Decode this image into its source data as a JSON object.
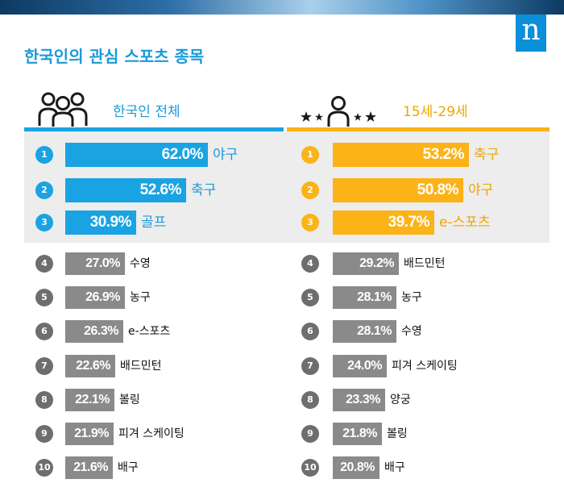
{
  "brand": {
    "logo_text": "n"
  },
  "page": {
    "title": "한국인의 관심 스포츠 종목"
  },
  "colors": {
    "all": "#1aa3e3",
    "youth": "#fbb318",
    "rest": "#8a8a8a",
    "badge_rest": "#6e6e6e",
    "panel": "#ededed"
  },
  "icons": {
    "all": "people-group-icon",
    "youth": "person-with-stars-icon"
  },
  "chart_data": [
    {
      "type": "bar",
      "title": "한국인 전체",
      "unit": "%",
      "ranks": [
        "1",
        "2",
        "3",
        "4",
        "5",
        "6",
        "7",
        "8",
        "9",
        "10"
      ],
      "categories": [
        "야구",
        "축구",
        "골프",
        "수영",
        "농구",
        "e-스포츠",
        "배드민턴",
        "볼링",
        "피겨 스케이팅",
        "배구"
      ],
      "values": [
        62.0,
        52.6,
        30.9,
        27.0,
        26.9,
        26.3,
        22.6,
        22.1,
        21.9,
        21.6
      ],
      "labels": [
        "62.0%",
        "52.6%",
        "30.9%",
        "27.0%",
        "26.9%",
        "26.3%",
        "22.6%",
        "22.1%",
        "21.9%",
        "21.6%"
      ],
      "highlight_top": 3
    },
    {
      "type": "bar",
      "title": "15세-29세",
      "unit": "%",
      "ranks": [
        "1",
        "2",
        "3",
        "4",
        "5",
        "6",
        "7",
        "8",
        "9",
        "10"
      ],
      "categories": [
        "축구",
        "야구",
        "e-스포츠",
        "배드민턴",
        "농구",
        "수영",
        "피겨 스케이팅",
        "양궁",
        "볼링",
        "배구"
      ],
      "values": [
        53.2,
        50.8,
        39.7,
        29.2,
        28.1,
        28.1,
        24.0,
        23.3,
        21.8,
        20.8
      ],
      "labels": [
        "53.2%",
        "50.8%",
        "39.7%",
        "29.2%",
        "28.1%",
        "28.1%",
        "24.0%",
        "23.3%",
        "21.8%",
        "20.8%"
      ],
      "highlight_top": 3
    }
  ]
}
